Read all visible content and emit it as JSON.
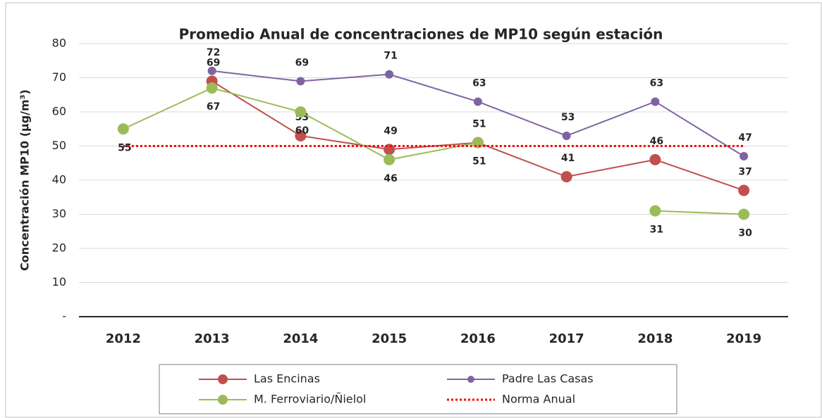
{
  "chart_data": {
    "type": "line",
    "title": "Promedio Anual de concentraciones de MP10 según estación",
    "y_label": "Concentración MP10 (µg/m³)",
    "categories": [
      "2012",
      "2013",
      "2014",
      "2015",
      "2016",
      "2017",
      "2018",
      "2019"
    ],
    "series": [
      {
        "name": "Las Encinas",
        "color": "#c0504d",
        "values": [
          null,
          69,
          53,
          49,
          51,
          41,
          46,
          37
        ]
      },
      {
        "name": "Padre Las Casas",
        "color": "#8064a2",
        "values": [
          null,
          72,
          69,
          71,
          63,
          53,
          63,
          47
        ]
      },
      {
        "name": "M. Ferroviario/Ñielol",
        "color": "#9bbb59",
        "values": [
          55,
          67,
          60,
          46,
          51,
          null,
          31,
          30
        ]
      },
      {
        "name": "Norma Anual",
        "color": "#ff0000",
        "dashed": true,
        "values": [
          50,
          50,
          50,
          50,
          50,
          50,
          50,
          50
        ]
      }
    ],
    "ylim": [
      0,
      80
    ],
    "yticks": [
      {
        "value": 0,
        "label": "-"
      },
      10,
      20,
      30,
      40,
      50,
      60,
      70,
      80
    ],
    "grid": true,
    "legend": "bottom"
  }
}
